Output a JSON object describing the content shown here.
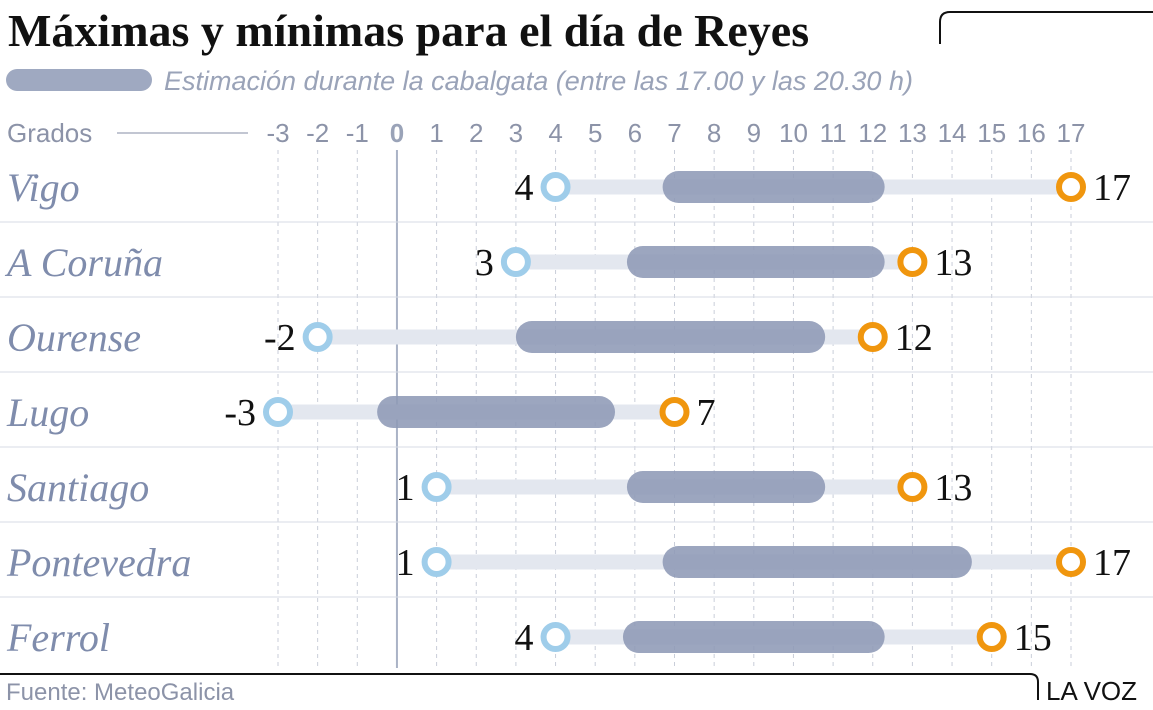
{
  "chart_data": {
    "type": "range-bar",
    "title": "Máximas y mínimas para el día de Reyes",
    "subtitle": "Estimación durante la cabalgata (entre las 17.00 y las 20.30 h)",
    "unit_label": "Grados",
    "x_ticks": [
      "-3",
      "-2",
      "-1",
      "0",
      "1",
      "2",
      "3",
      "4",
      "5",
      "6",
      "7",
      "8",
      "9",
      "10",
      "11",
      "12",
      "13",
      "14",
      "15",
      "16",
      "17"
    ],
    "xlim": [
      -3,
      17
    ],
    "categories": [
      "Vigo",
      "A Coruña",
      "Ourense",
      "Lugo",
      "Santiago",
      "Pontevedra",
      "Ferrol"
    ],
    "series": [
      {
        "name": "mínima",
        "values": [
          4,
          3,
          -2,
          -3,
          1,
          1,
          4
        ]
      },
      {
        "name": "máxima",
        "values": [
          17,
          13,
          12,
          7,
          13,
          17,
          15
        ]
      },
      {
        "name": "Estimación durante la cabalgata",
        "ranges": [
          [
            6.7,
            12.3
          ],
          [
            5.8,
            12.3
          ],
          [
            3,
            10.8
          ],
          [
            -0.5,
            5.5
          ],
          [
            5.8,
            10.8
          ],
          [
            6.7,
            14.5
          ],
          [
            5.7,
            12.3
          ]
        ]
      }
    ],
    "min_labels": [
      "4",
      "3",
      "-2",
      "-3",
      "1",
      "1",
      "4"
    ],
    "max_labels": [
      "17",
      "13",
      "12",
      "7",
      "13",
      "17",
      "15"
    ],
    "colors": {
      "min": "#9fcdea",
      "max": "#f0960e",
      "estimate": "#8e9ab6",
      "track": "#e3e7ef"
    }
  },
  "footer": {
    "source": "Fuente: MeteoGalicia",
    "brand": "LA VOZ"
  }
}
